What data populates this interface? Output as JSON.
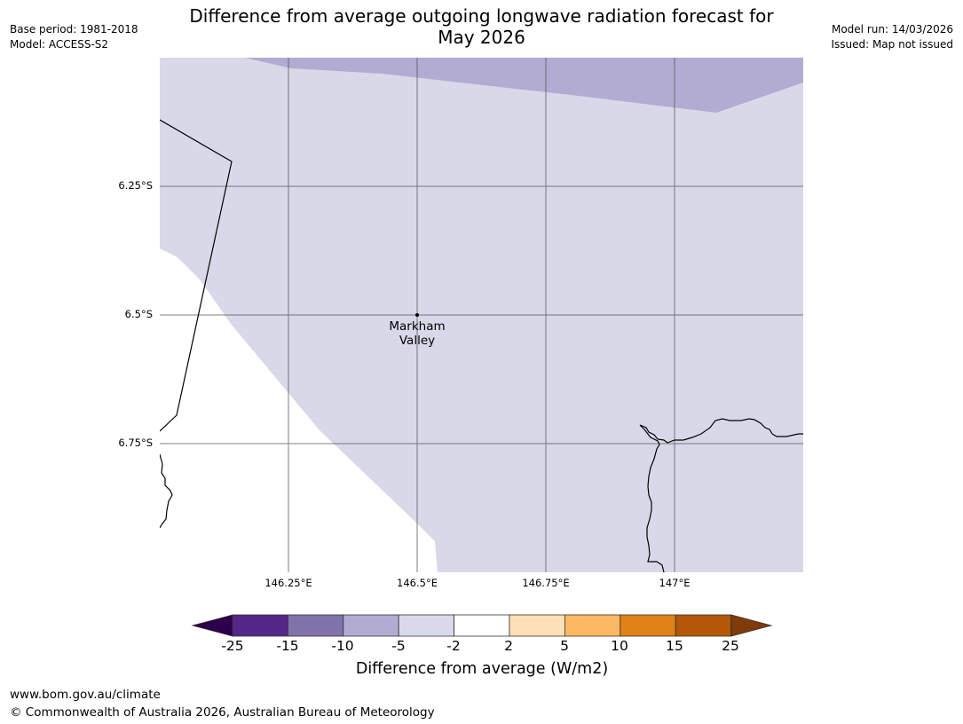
{
  "title": "Difference from average outgoing longwave radiation forecast for May 2026",
  "title_line1": "Difference from average outgoing longwave radiation forecast for",
  "title_line2": "May 2026",
  "meta_left": {
    "base_period": "Base period: 1981-2018",
    "model": "Model: ACCESS-S2"
  },
  "meta_right": {
    "model_run": "Model run: 14/03/2026",
    "issued": "Issued: Map not issued"
  },
  "map": {
    "lat_labels": [
      "6.25°S",
      "6.5°S",
      "6.75°S"
    ],
    "lon_labels": [
      "146.25°E",
      "146.5°E",
      "146.75°E",
      "147°E"
    ],
    "place": {
      "name_line1": "Markham",
      "name_line2": "Valley"
    },
    "colors": {
      "zone_minus5_to_minus2": "#d8d8e9",
      "zone_minus10_to_minus5": "#b2abd2",
      "coastline": "#000000",
      "grid": "#555555"
    }
  },
  "colorbar": {
    "title": "Difference from average (W/m2)",
    "labels": [
      "-25",
      "-15",
      "-10",
      "-5",
      "-2",
      "2",
      "5",
      "10",
      "15",
      "25"
    ],
    "segments": [
      "#542788",
      "#8073ac",
      "#b2abd2",
      "#d8daeb",
      "#ffffff",
      "#fee0b6",
      "#fdb863",
      "#e08214",
      "#b35806"
    ],
    "low_extend": "#2d004b",
    "high_extend": "#7f3b08"
  },
  "footer": {
    "url": "www.bom.gov.au/climate",
    "copyright": "© Commonwealth of Australia 2026, Australian Bureau of Meteorology"
  }
}
